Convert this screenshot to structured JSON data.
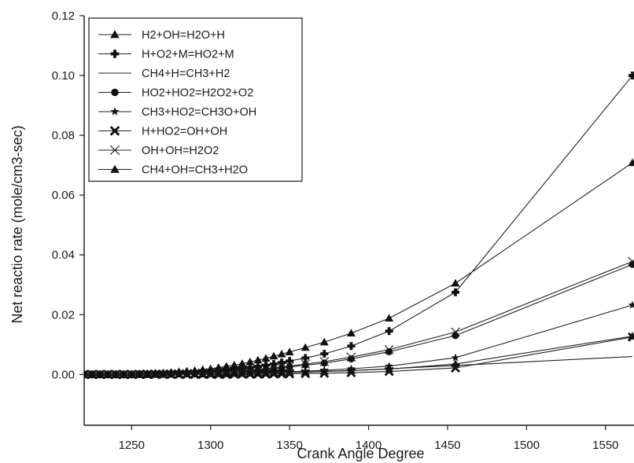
{
  "chart_data": {
    "type": "line",
    "title": "",
    "xlabel": "Crank Angle Degree",
    "ylabel": "Net reactio rate (mole/cm3-sec)",
    "xlim": [
      1220,
      1568
    ],
    "ylim": [
      -0.017,
      0.12
    ],
    "xticks": [
      1250,
      1300,
      1350,
      1400,
      1450,
      1500,
      1550
    ],
    "yticks": [
      0.0,
      0.02,
      0.04,
      0.06,
      0.08,
      0.1,
      0.12
    ],
    "xtick_labels": [
      "1250",
      "1300",
      "1350",
      "1400",
      "1450",
      "1500",
      "1550"
    ],
    "ytick_labels": [
      "0.00",
      "0.02",
      "0.04",
      "0.06",
      "0.08",
      "0.10",
      "0.12"
    ],
    "grid": false,
    "legend_position": "top-left",
    "x": [
      1220,
      1225,
      1230,
      1235,
      1240,
      1245,
      1250,
      1255,
      1260,
      1265,
      1270,
      1275,
      1280,
      1285,
      1290,
      1295,
      1300,
      1305,
      1310,
      1315,
      1320,
      1325,
      1330,
      1335,
      1340,
      1345,
      1350,
      1360,
      1372,
      1389,
      1413,
      1455,
      1567
    ],
    "series": [
      {
        "name": "H2+OH=H2O+H",
        "marker": "triangle",
        "values": [
          0.0,
          0.0,
          0.0,
          0.0,
          0.0,
          0.0,
          0.0001,
          0.0002,
          0.0003,
          0.0004,
          0.0005,
          0.0007,
          0.0009,
          0.0011,
          0.0013,
          0.0016,
          0.0019,
          0.0023,
          0.0027,
          0.0031,
          0.0036,
          0.0042,
          0.0048,
          0.0054,
          0.0061,
          0.0068,
          0.0075,
          0.009,
          0.0108,
          0.0138,
          0.0188,
          0.0305,
          0.0708
        ]
      },
      {
        "name": "H+O2+M=HO2+M",
        "marker": "plus",
        "values": [
          0.0,
          0.0,
          0.0,
          0.0,
          0.0,
          0.0,
          0.0,
          0.0001,
          0.0001,
          0.0002,
          0.0002,
          0.0003,
          0.0004,
          0.0005,
          0.0006,
          0.0008,
          0.001,
          0.0012,
          0.0014,
          0.0017,
          0.002,
          0.0023,
          0.0027,
          0.0031,
          0.0035,
          0.004,
          0.0045,
          0.0055,
          0.0069,
          0.0095,
          0.0145,
          0.0275,
          0.1
        ]
      },
      {
        "name": "CH4+H=CH3+H2",
        "marker": "none",
        "values": [
          0.0,
          0.0,
          0.0,
          0.0,
          0.0,
          0.0,
          0.0,
          0.0,
          0.0,
          0.0,
          0.0,
          0.0001,
          0.0001,
          0.0001,
          0.0001,
          0.0002,
          0.0002,
          0.0002,
          0.0003,
          0.0003,
          0.0004,
          0.0004,
          0.0005,
          0.0005,
          0.0006,
          0.0006,
          0.0007,
          0.0008,
          0.001,
          0.0013,
          0.0019,
          0.003,
          0.006
        ]
      },
      {
        "name": "HO2+HO2=H2O2+O2",
        "marker": "circle",
        "values": [
          0.0,
          0.0,
          0.0,
          0.0,
          0.0,
          0.0,
          0.0,
          0.0,
          0.0001,
          0.0001,
          0.0001,
          0.0002,
          0.0002,
          0.0003,
          0.0004,
          0.0005,
          0.0006,
          0.0007,
          0.0008,
          0.001,
          0.0011,
          0.0013,
          0.0015,
          0.0017,
          0.002,
          0.0022,
          0.0025,
          0.0031,
          0.0038,
          0.0052,
          0.0076,
          0.013,
          0.0368
        ]
      },
      {
        "name": "CH3+HO2=CH3O+OH",
        "marker": "star",
        "values": [
          0.0,
          0.0,
          0.0,
          0.0,
          0.0,
          0.0,
          0.0,
          0.0,
          0.0,
          0.0,
          0.0,
          0.0001,
          0.0001,
          0.0001,
          0.0002,
          0.0002,
          0.0002,
          0.0003,
          0.0003,
          0.0004,
          0.0004,
          0.0005,
          0.0006,
          0.0007,
          0.0007,
          0.0008,
          0.0009,
          0.0011,
          0.0014,
          0.0019,
          0.0028,
          0.0056,
          0.0232
        ]
      },
      {
        "name": "H+HO2=OH+OH",
        "marker": "x-bold",
        "values": [
          0.0,
          0.0,
          0.0,
          0.0,
          0.0,
          0.0,
          0.0,
          0.0,
          0.0,
          0.0,
          0.0,
          0.0,
          0.0,
          0.0,
          0.0,
          0.0,
          0.0,
          0.0,
          0.0,
          0.0001,
          0.0001,
          0.0001,
          0.0001,
          0.0001,
          0.0002,
          0.0002,
          0.0002,
          0.0003,
          0.0004,
          0.0006,
          0.001,
          0.0022,
          0.0125
        ]
      },
      {
        "name": "OH+OH=H2O2",
        "marker": "x-thin",
        "values": [
          0.0,
          0.0,
          0.0,
          0.0,
          0.0,
          0.0,
          0.0,
          0.0,
          0.0001,
          0.0001,
          0.0001,
          0.0002,
          0.0002,
          0.0003,
          0.0004,
          0.0005,
          0.0006,
          0.0008,
          0.0009,
          0.0011,
          0.0013,
          0.0015,
          0.0017,
          0.002,
          0.0022,
          0.0025,
          0.0028,
          0.0035,
          0.0043,
          0.0058,
          0.0083,
          0.0142,
          0.0378
        ]
      },
      {
        "name": "CH4+OH=CH3+H2O",
        "marker": "triangle",
        "values": [
          0.0,
          0.0,
          0.0,
          0.0,
          0.0,
          0.0,
          0.0,
          0.0,
          0.0,
          0.0,
          0.0,
          0.0,
          0.0001,
          0.0001,
          0.0001,
          0.0001,
          0.0002,
          0.0002,
          0.0002,
          0.0003,
          0.0003,
          0.0004,
          0.0004,
          0.0005,
          0.0005,
          0.0006,
          0.0007,
          0.0008,
          0.001,
          0.0013,
          0.0018,
          0.0035,
          0.0128
        ]
      }
    ]
  }
}
